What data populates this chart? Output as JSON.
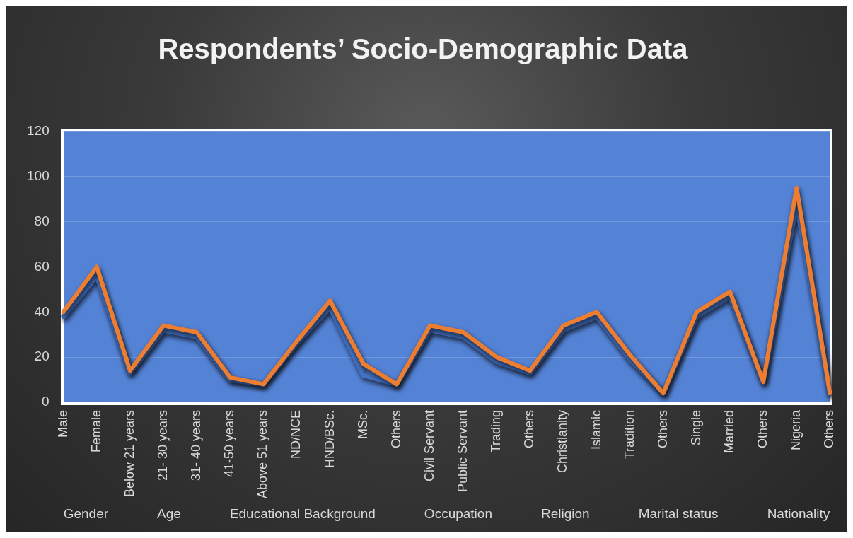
{
  "chart_data": {
    "type": "line",
    "title": "Respondents’ Socio-Demographic Data",
    "categories": [
      "Male",
      "Female",
      "Below 21 years",
      "21- 30 years",
      "31- 40 years",
      "41-50 years",
      "Above 51 years",
      "ND/NCE",
      "HND/BSc.",
      "MSc.",
      "Others",
      "Civil Servant",
      "Public Servant",
      "Trading",
      "Others",
      "Christianity",
      "Islamic",
      "Tradition",
      "Others",
      "Single",
      "Married",
      "Others",
      "Nigeria",
      "Others"
    ],
    "series": [
      {
        "color": "#4472c4",
        "values": [
          38,
          56,
          13,
          32,
          29,
          10,
          8,
          26,
          42,
          12,
          8,
          32,
          29,
          18,
          13,
          32,
          38,
          19,
          4,
          38,
          47,
          9,
          88,
          4
        ]
      },
      {
        "color": "#ed7d31",
        "values": [
          40,
          60,
          14,
          34,
          31,
          11,
          8,
          27,
          45,
          17,
          8,
          34,
          31,
          20,
          14,
          34,
          40,
          21,
          4,
          40,
          49,
          9,
          95,
          4
        ]
      }
    ],
    "annotations": [
      "Gender",
      "Age",
      "Educational Background",
      "Occupation",
      "Religion",
      "Marital status",
      "Nationality"
    ],
    "ylim": [
      0,
      120
    ],
    "yticks": [
      0,
      20,
      40,
      60,
      80,
      100,
      120
    ],
    "grid": "y",
    "legend": false,
    "marker": "none",
    "line_style": "solid"
  }
}
